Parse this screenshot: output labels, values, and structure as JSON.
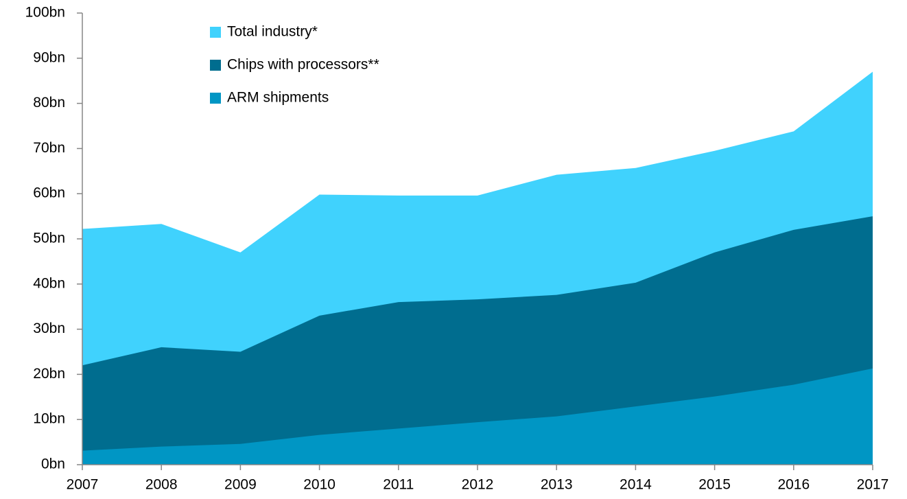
{
  "chart_data": {
    "type": "area",
    "categories": [
      "2007",
      "2008",
      "2009",
      "2010",
      "2011",
      "2012",
      "2013",
      "2014",
      "2015",
      "2016",
      "2017"
    ],
    "series": [
      {
        "name": "Total industry*",
        "color": "#40d2fd",
        "values": [
          52.2,
          53.3,
          47,
          59.8,
          59.6,
          59.6,
          64.2,
          65.7,
          69.5,
          73.8,
          87
        ]
      },
      {
        "name": "Chips with processors**",
        "color": "#006d8f",
        "values": [
          22,
          26,
          25,
          33,
          36,
          36.6,
          37.6,
          40.3,
          47,
          52,
          55
        ]
      },
      {
        "name": "ARM shipments",
        "color": "#0096c4",
        "values": [
          3.1,
          4,
          4.6,
          6.6,
          8,
          9.4,
          10.7,
          12.9,
          15.1,
          17.7,
          21.3
        ]
      }
    ],
    "ylim": [
      0,
      100
    ],
    "yticks": [
      {
        "value": 0,
        "label": "0bn"
      },
      {
        "value": 10,
        "label": "10bn"
      },
      {
        "value": 20,
        "label": "20bn"
      },
      {
        "value": 30,
        "label": "30bn"
      },
      {
        "value": 40,
        "label": "40bn"
      },
      {
        "value": 50,
        "label": "50bn"
      },
      {
        "value": 60,
        "label": "60bn"
      },
      {
        "value": 70,
        "label": "70bn"
      },
      {
        "value": 80,
        "label": "80bn"
      },
      {
        "value": 90,
        "label": "90bn"
      },
      {
        "value": 100,
        "label": "100bn"
      }
    ],
    "legend": "top-left"
  }
}
